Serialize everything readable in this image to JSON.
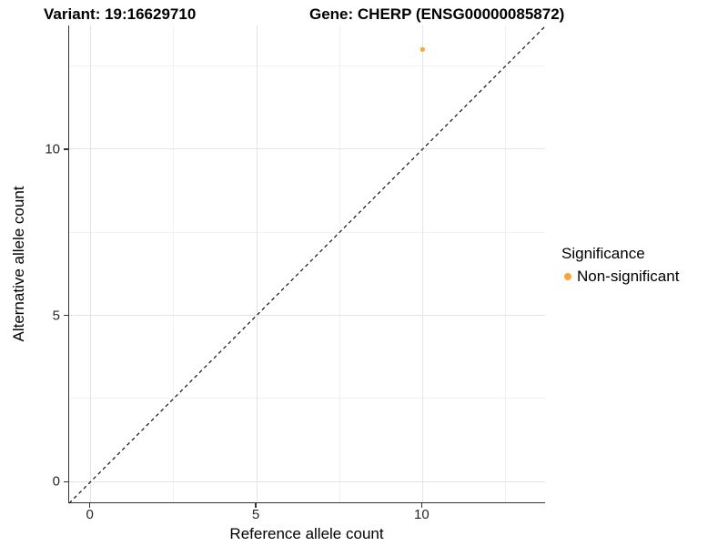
{
  "figure": {
    "title_left": "Variant: 19:16629710",
    "title_right": "Gene: CHERP (ENSG00000085872)"
  },
  "axes": {
    "x_title": "Reference allele count",
    "y_title": "Alternative allele count"
  },
  "legend": {
    "title": "Significance",
    "entries": [
      {
        "label": "Non-significant",
        "color": "#FAA43C"
      }
    ]
  },
  "colors": {
    "point": "#FAA43C",
    "axis_line": "#333333",
    "identity_line": "#111111",
    "major_grid": "#e4e4e4",
    "minor_grid": "#f1f1f1"
  },
  "chart_data": {
    "type": "scatter",
    "title": "Variant: 19:16629710    Gene: CHERP (ENSG00000085872)",
    "xlabel": "Reference allele count",
    "ylabel": "Alternative allele count",
    "xlim": [
      -0.65,
      13.72
    ],
    "ylim": [
      -0.65,
      13.72
    ],
    "x_major_ticks": [
      0,
      5,
      10
    ],
    "y_major_ticks": [
      0,
      5,
      10
    ],
    "x_minor_ticks": [
      2.5,
      7.5,
      12.5
    ],
    "y_minor_ticks": [
      2.5,
      7.5,
      12.5
    ],
    "grid": true,
    "legend_position": "right",
    "series": [
      {
        "name": "Non-significant",
        "color": "#FAA43C",
        "points": [
          {
            "x": 10,
            "y": 13
          }
        ]
      }
    ],
    "identity_line": {
      "slope": 1,
      "intercept": 0,
      "style": "dashed"
    }
  }
}
